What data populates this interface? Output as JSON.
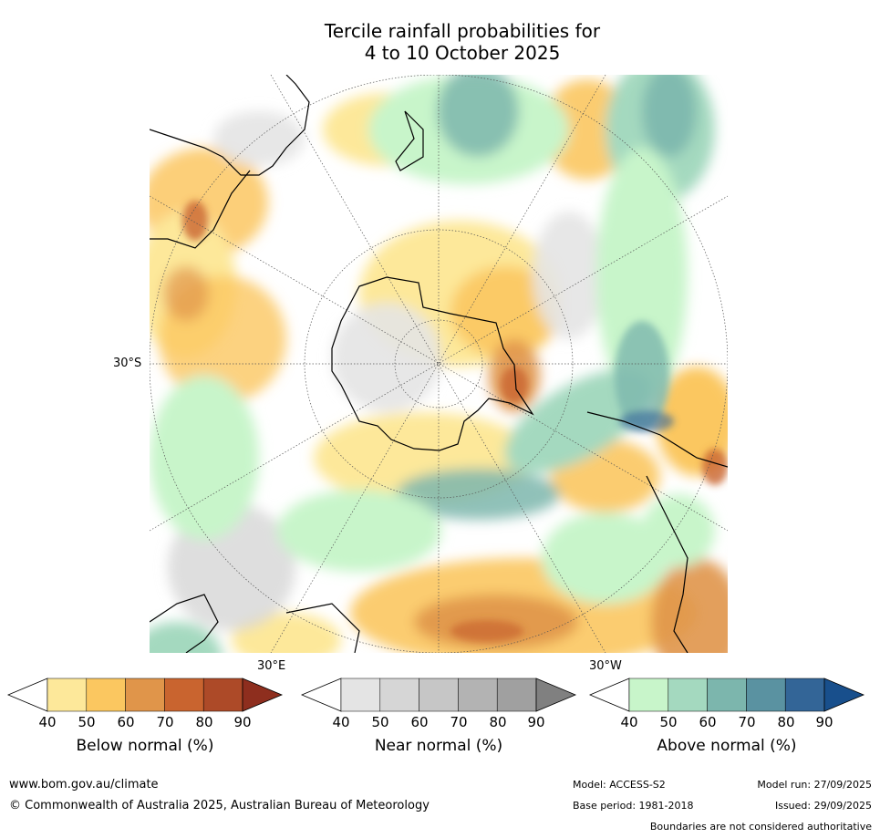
{
  "title": {
    "line1": "Tercile rainfall probabilities for",
    "line2": "4 to 10 October 2025"
  },
  "map": {
    "projection": "south polar stereographic",
    "lat_label": "30°S",
    "lon_labels": [
      "30°E",
      "30°W"
    ],
    "colors": {
      "below": [
        "#fde89a",
        "#fbc760",
        "#e0954a",
        "#c9642f",
        "#ad4a28",
        "#8e2e1e"
      ],
      "near": [
        "#e4e4e4",
        "#d6d6d6",
        "#c6c6c6",
        "#b3b3b3",
        "#a0a0a0",
        "#808080"
      ],
      "above": [
        "#c8f5ca",
        "#a4d9bf",
        "#7cb6ad",
        "#5a92a1",
        "#336597",
        "#184f8c"
      ]
    }
  },
  "colorbars": [
    {
      "label": "Below normal (%)",
      "ticks": [
        "40",
        "50",
        "60",
        "70",
        "80",
        "90"
      ]
    },
    {
      "label": "Near normal (%)",
      "ticks": [
        "40",
        "50",
        "60",
        "70",
        "80",
        "90"
      ]
    },
    {
      "label": "Above normal (%)",
      "ticks": [
        "40",
        "50",
        "60",
        "70",
        "80",
        "90"
      ]
    }
  ],
  "footer": {
    "website": "www.bom.gov.au/climate",
    "copyright": "© Commonwealth of Australia 2025, Australian Bureau of Meteorology",
    "model": "Model: ACCESS-S2",
    "base_period": "Base period: 1981-2018",
    "model_run": "Model run: 27/09/2025",
    "issued": "Issued: 29/09/2025",
    "disclaimer": "Boundaries are not considered authoritative"
  }
}
